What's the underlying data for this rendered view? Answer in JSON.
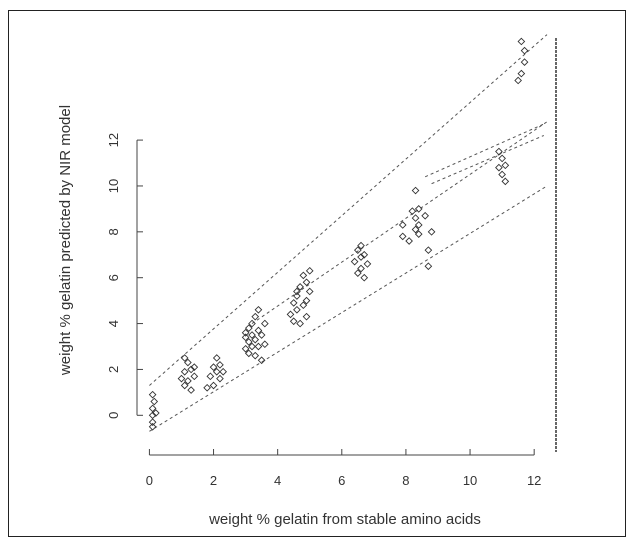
{
  "chart_data": {
    "type": "scatter",
    "xlabel": "weight % gelatin from stable amino acids",
    "ylabel": "weight % gelatin predicted by NIR model",
    "xlim": [
      -0.2,
      12.4
    ],
    "ylim": [
      -1.6,
      16.8
    ],
    "x_ticks": [
      0,
      2,
      4,
      6,
      8,
      10,
      12
    ],
    "x_tick_labels": [
      "0",
      "2",
      "4",
      "6",
      "8",
      "10",
      "12"
    ],
    "y_ticks": [
      0,
      2,
      4,
      6,
      8,
      10,
      12
    ],
    "y_tick_labels": [
      "0",
      "2",
      "4",
      "6",
      "8",
      "10",
      "12"
    ],
    "grid": false,
    "reference_lines": [
      {
        "from": [
          0,
          1.3
        ],
        "to": [
          12.4,
          16.6
        ]
      },
      {
        "from": [
          0,
          -0.7
        ],
        "to": [
          12.4,
          10.0
        ]
      },
      {
        "from": [
          3.2,
          4.0
        ],
        "to": [
          12.4,
          12.8
        ]
      },
      {
        "from": [
          8.6,
          10.4
        ],
        "to": [
          12.3,
          12.7
        ]
      },
      {
        "from": [
          8.8,
          10.1
        ],
        "to": [
          12.3,
          12.2
        ]
      }
    ],
    "series": [
      {
        "marker": "diamond",
        "points": [
          [
            0.1,
            0.0
          ],
          [
            0.1,
            -0.3
          ],
          [
            0.1,
            0.3
          ],
          [
            0.15,
            0.6
          ],
          [
            0.1,
            0.9
          ],
          [
            0.1,
            -0.5
          ],
          [
            0.2,
            0.1
          ],
          [
            1.0,
            1.6
          ],
          [
            1.1,
            1.9
          ],
          [
            1.1,
            1.3
          ],
          [
            1.2,
            2.3
          ],
          [
            1.2,
            1.5
          ],
          [
            1.3,
            2.0
          ],
          [
            1.3,
            1.1
          ],
          [
            1.4,
            1.7
          ],
          [
            1.1,
            2.5
          ],
          [
            1.4,
            2.1
          ],
          [
            1.9,
            1.7
          ],
          [
            2.0,
            2.1
          ],
          [
            2.0,
            1.3
          ],
          [
            2.1,
            1.9
          ],
          [
            2.1,
            2.5
          ],
          [
            2.2,
            1.6
          ],
          [
            2.2,
            2.2
          ],
          [
            1.8,
            1.2
          ],
          [
            2.3,
            1.9
          ],
          [
            3.0,
            3.4
          ],
          [
            3.0,
            2.9
          ],
          [
            3.1,
            3.8
          ],
          [
            3.1,
            3.2
          ],
          [
            3.1,
            2.7
          ],
          [
            3.2,
            4.0
          ],
          [
            3.2,
            3.5
          ],
          [
            3.2,
            3.0
          ],
          [
            3.3,
            4.3
          ],
          [
            3.3,
            3.3
          ],
          [
            3.3,
            2.6
          ],
          [
            3.4,
            3.7
          ],
          [
            3.4,
            3.0
          ],
          [
            3.5,
            2.4
          ],
          [
            3.5,
            3.5
          ],
          [
            3.6,
            4.0
          ],
          [
            3.6,
            3.1
          ],
          [
            3.0,
            3.6
          ],
          [
            3.4,
            4.6
          ],
          [
            4.4,
            4.4
          ],
          [
            4.5,
            4.9
          ],
          [
            4.5,
            4.1
          ],
          [
            4.6,
            5.2
          ],
          [
            4.6,
            4.6
          ],
          [
            4.7,
            4.0
          ],
          [
            4.7,
            5.6
          ],
          [
            4.8,
            4.8
          ],
          [
            4.8,
            6.1
          ],
          [
            4.9,
            5.0
          ],
          [
            4.9,
            4.3
          ],
          [
            5.0,
            5.4
          ],
          [
            5.0,
            6.3
          ],
          [
            4.9,
            5.8
          ],
          [
            4.6,
            5.4
          ],
          [
            6.4,
            6.7
          ],
          [
            6.5,
            6.2
          ],
          [
            6.5,
            7.2
          ],
          [
            6.6,
            6.9
          ],
          [
            6.6,
            6.4
          ],
          [
            6.7,
            7.0
          ],
          [
            6.7,
            6.0
          ],
          [
            6.6,
            7.4
          ],
          [
            6.8,
            6.6
          ],
          [
            7.9,
            8.3
          ],
          [
            7.9,
            7.8
          ],
          [
            8.2,
            8.9
          ],
          [
            8.3,
            8.6
          ],
          [
            8.3,
            8.1
          ],
          [
            8.4,
            9.0
          ],
          [
            8.4,
            7.9
          ],
          [
            8.6,
            8.7
          ],
          [
            8.7,
            7.2
          ],
          [
            8.7,
            6.5
          ],
          [
            8.3,
            9.8
          ],
          [
            8.4,
            8.3
          ],
          [
            8.1,
            7.6
          ],
          [
            8.8,
            8.0
          ],
          [
            10.9,
            10.8
          ],
          [
            11.0,
            11.2
          ],
          [
            11.0,
            10.5
          ],
          [
            11.1,
            10.9
          ],
          [
            10.9,
            11.5
          ],
          [
            11.1,
            10.2
          ],
          [
            11.6,
            14.9
          ],
          [
            11.7,
            15.4
          ],
          [
            11.6,
            16.3
          ],
          [
            11.7,
            15.9
          ],
          [
            11.5,
            14.6
          ]
        ]
      }
    ]
  }
}
